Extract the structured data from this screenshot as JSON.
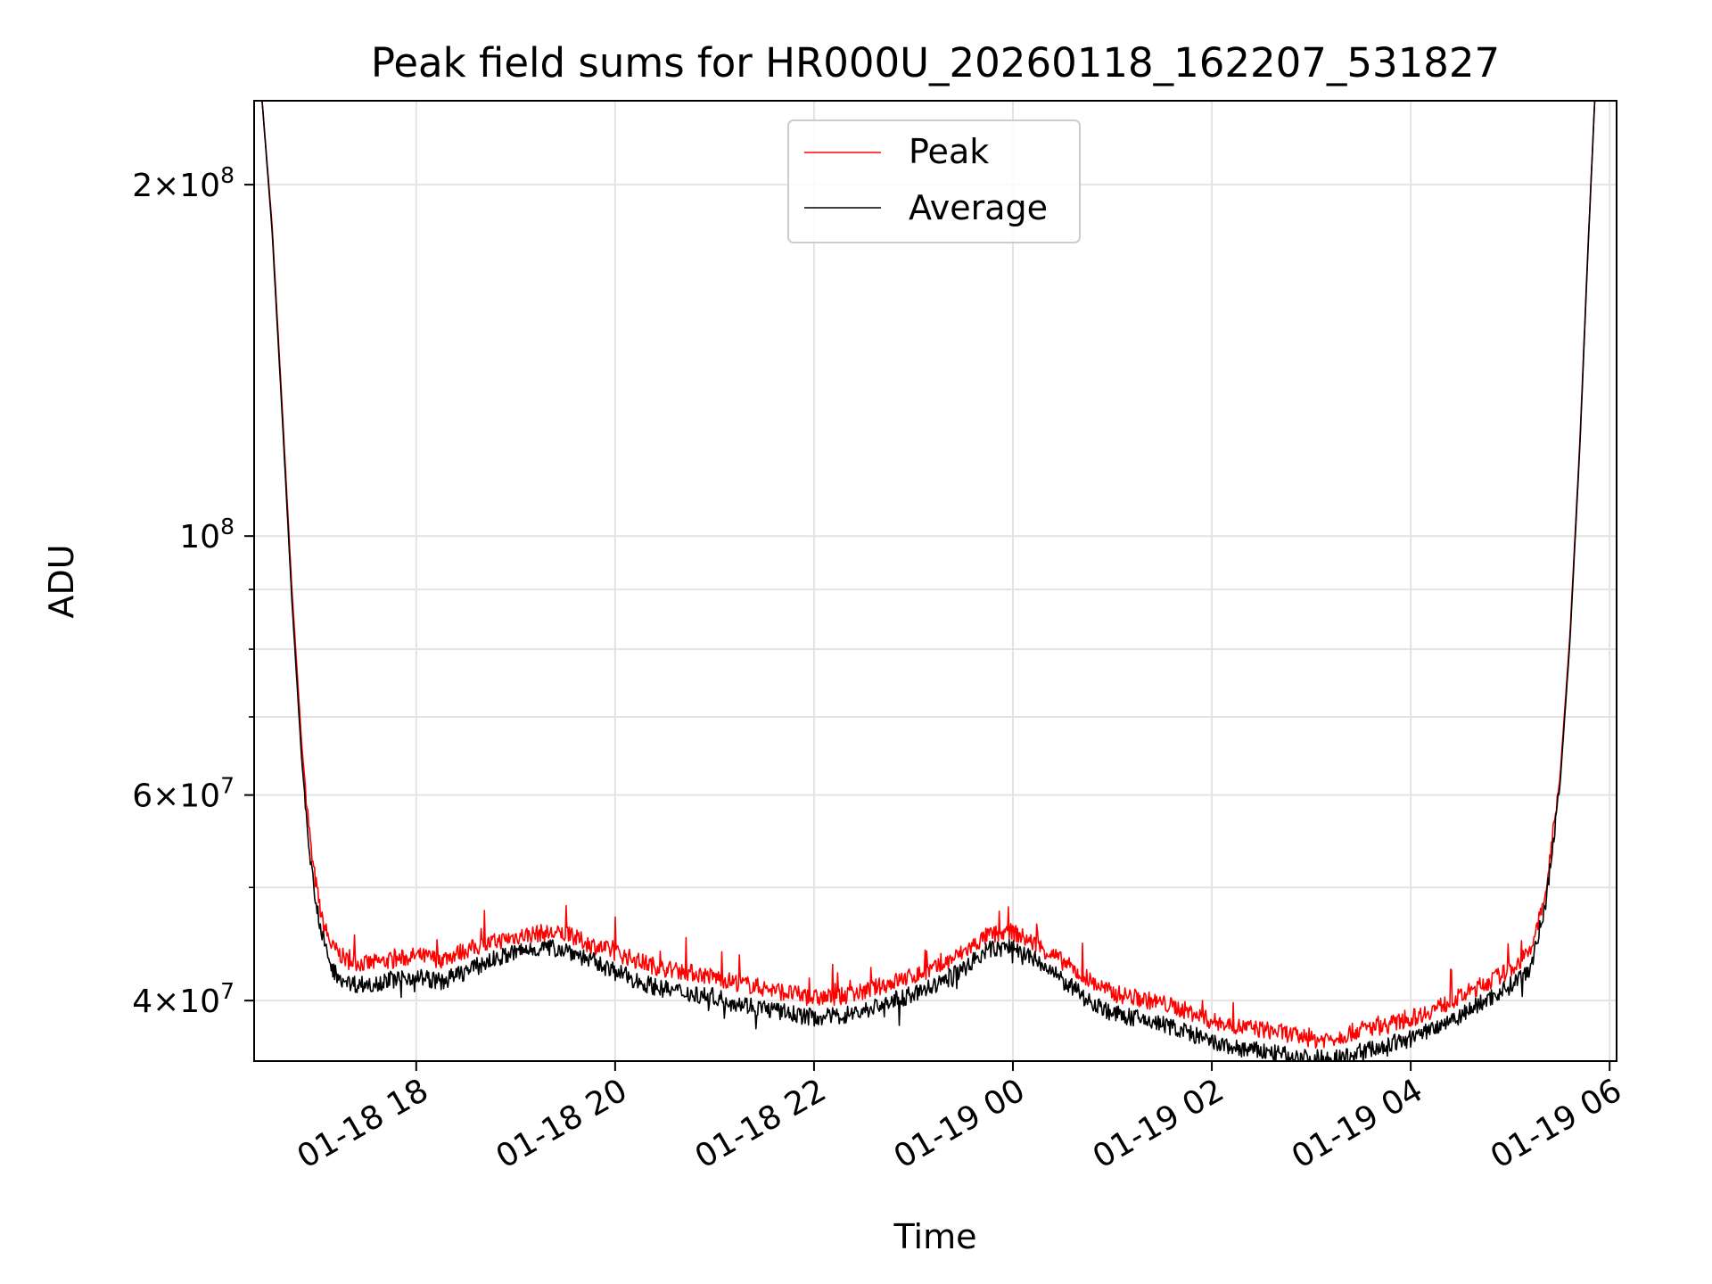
{
  "chart_data": {
    "type": "line",
    "title": "Peak field sums for HR000U_20260118_162207_531827",
    "xlabel": "Time",
    "ylabel": "ADU",
    "yscale": "log",
    "x_unit": "hours since 2026-01-18 00:00",
    "xlim": [
      16.37,
      30.07
    ],
    "ylim": [
      35500000,
      236000000
    ],
    "grid": true,
    "legend_position": "upper center",
    "x_ticks": [
      {
        "value": 18,
        "label": "01-18 18"
      },
      {
        "value": 20,
        "label": "01-18 20"
      },
      {
        "value": 22,
        "label": "01-18 22"
      },
      {
        "value": 24,
        "label": "01-19 00"
      },
      {
        "value": 26,
        "label": "01-19 02"
      },
      {
        "value": 28,
        "label": "01-19 04"
      },
      {
        "value": 30,
        "label": "01-19 06"
      }
    ],
    "y_major_ticks": [
      {
        "value": 40000000,
        "mantissa": "4",
        "exponent": "7"
      },
      {
        "value": 60000000,
        "mantissa": "6",
        "exponent": "7"
      },
      {
        "value": 100000000,
        "mantissa": "",
        "exponent": "8"
      },
      {
        "value": 200000000,
        "mantissa": "2",
        "exponent": "8"
      }
    ],
    "y_minor_ticks": [
      50000000,
      70000000,
      80000000,
      90000000
    ],
    "series": [
      {
        "name": "Peak",
        "color": "#ff0000",
        "x": [
          16.45,
          16.55,
          16.65,
          16.75,
          16.85,
          16.95,
          17.05,
          17.15,
          17.3,
          17.5,
          17.75,
          18.0,
          18.25,
          18.5,
          18.75,
          19.0,
          19.25,
          19.5,
          19.75,
          20.0,
          20.25,
          20.5,
          20.75,
          21.0,
          21.25,
          21.5,
          21.75,
          22.0,
          22.25,
          22.5,
          22.75,
          23.0,
          23.25,
          23.5,
          23.75,
          24.0,
          24.25,
          24.5,
          24.75,
          25.0,
          25.25,
          25.5,
          25.75,
          26.0,
          26.25,
          26.5,
          26.75,
          27.0,
          27.25,
          27.5,
          27.75,
          28.0,
          28.25,
          28.5,
          28.75,
          29.0,
          29.2,
          29.35,
          29.5,
          29.6,
          29.7,
          29.78,
          29.85
        ],
        "values": [
          236000000,
          185000000,
          130000000,
          90000000,
          66000000,
          53000000,
          47000000,
          44500000,
          43300000,
          43000000,
          43300000,
          43700000,
          43400000,
          44200000,
          44800000,
          45400000,
          45700000,
          45600000,
          44700000,
          44000000,
          43200000,
          42600000,
          42300000,
          41900000,
          41400000,
          41000000,
          40600000,
          40200000,
          40300000,
          40700000,
          41400000,
          42000000,
          42700000,
          44000000,
          45500000,
          45800000,
          44600000,
          43200000,
          41700000,
          40600000,
          40200000,
          39800000,
          39200000,
          38400000,
          38000000,
          37800000,
          37500000,
          37000000,
          37200000,
          37800000,
          38100000,
          38600000,
          39400000,
          40300000,
          41400000,
          42500000,
          44000000,
          49000000,
          62000000,
          82000000,
          120000000,
          175000000,
          236000000
        ]
      },
      {
        "name": "Average",
        "color": "#000000",
        "x": [
          16.45,
          16.55,
          16.65,
          16.75,
          16.85,
          16.95,
          17.05,
          17.15,
          17.3,
          17.5,
          17.75,
          18.0,
          18.25,
          18.5,
          18.75,
          19.0,
          19.25,
          19.5,
          19.75,
          20.0,
          20.25,
          20.5,
          20.75,
          21.0,
          21.25,
          21.5,
          21.75,
          22.0,
          22.25,
          22.5,
          22.75,
          23.0,
          23.25,
          23.5,
          23.75,
          24.0,
          24.25,
          24.5,
          24.75,
          25.0,
          25.25,
          25.5,
          25.75,
          26.0,
          26.25,
          26.5,
          26.75,
          27.0,
          27.25,
          27.5,
          27.75,
          28.0,
          28.25,
          28.5,
          28.75,
          29.0,
          29.2,
          29.35,
          29.5,
          29.6,
          29.7,
          29.78,
          29.85
        ],
        "values": [
          236000000,
          183000000,
          128000000,
          88000000,
          64000000,
          51500000,
          45500000,
          42600000,
          41400000,
          41300000,
          41700000,
          42000000,
          41500000,
          42400000,
          43300000,
          44000000,
          44400000,
          44300000,
          43300000,
          42400000,
          41500000,
          40900000,
          40600000,
          40300000,
          39800000,
          39400000,
          39000000,
          38700000,
          38800000,
          39200000,
          39900000,
          40500000,
          41300000,
          42600000,
          44200000,
          44500000,
          43200000,
          41600000,
          40100000,
          39000000,
          38600000,
          38200000,
          37600000,
          36800000,
          36400000,
          36200000,
          35900000,
          35700000,
          35700000,
          36200000,
          36600000,
          37100000,
          38000000,
          38900000,
          40000000,
          41200000,
          42700000,
          48000000,
          61000000,
          81000000,
          119000000,
          174000000,
          236000000
        ]
      }
    ]
  }
}
